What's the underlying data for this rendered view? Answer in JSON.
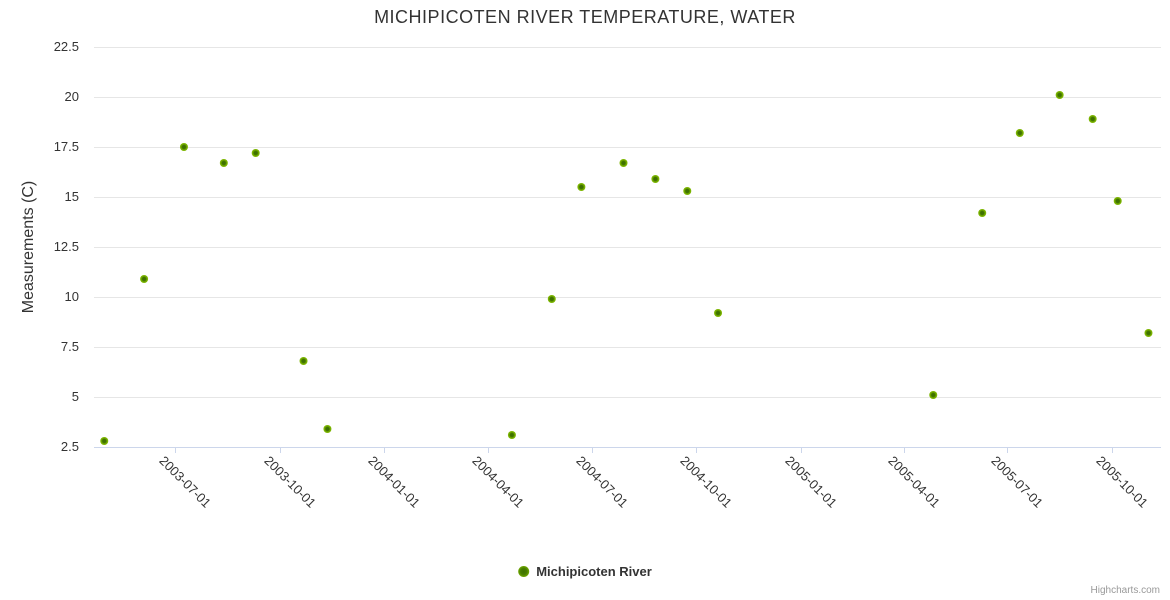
{
  "chart_data": {
    "type": "scatter",
    "title": "MICHIPICOTEN RIVER TEMPERATURE, WATER",
    "xlabel": "",
    "ylabel": "Measurements (C)",
    "grid": true,
    "legend_position": "bottom-center",
    "ylim": [
      2.5,
      22.5
    ],
    "y_ticks": [
      2.5,
      5,
      7.5,
      10,
      12.5,
      15,
      17.5,
      20,
      22.5
    ],
    "xlim": [
      "2003-04-21",
      "2005-11-13"
    ],
    "x_ticks": [
      "2003-07-01",
      "2003-10-01",
      "2004-01-01",
      "2004-04-01",
      "2004-07-01",
      "2004-10-01",
      "2005-01-01",
      "2005-04-01",
      "2005-07-01",
      "2005-10-01"
    ],
    "series": [
      {
        "name": "Michipicoten River",
        "marker_fill": "#7cb500",
        "marker_center": "#3e7100",
        "points": [
          {
            "date": "2003-04-30",
            "value": 2.8
          },
          {
            "date": "2003-06-04",
            "value": 10.9
          },
          {
            "date": "2003-07-09",
            "value": 17.5
          },
          {
            "date": "2003-08-13",
            "value": 16.7
          },
          {
            "date": "2003-09-10",
            "value": 17.2
          },
          {
            "date": "2003-10-22",
            "value": 6.8
          },
          {
            "date": "2003-11-12",
            "value": 3.4
          },
          {
            "date": "2004-04-22",
            "value": 3.1
          },
          {
            "date": "2004-05-27",
            "value": 9.9
          },
          {
            "date": "2004-06-22",
            "value": 15.5
          },
          {
            "date": "2004-07-29",
            "value": 16.7
          },
          {
            "date": "2004-08-26",
            "value": 15.9
          },
          {
            "date": "2004-09-23",
            "value": 15.3
          },
          {
            "date": "2004-10-20",
            "value": 9.2
          },
          {
            "date": "2005-04-27",
            "value": 5.1
          },
          {
            "date": "2005-06-09",
            "value": 14.2
          },
          {
            "date": "2005-07-12",
            "value": 18.2
          },
          {
            "date": "2005-08-16",
            "value": 20.1
          },
          {
            "date": "2005-09-14",
            "value": 18.9
          },
          {
            "date": "2005-10-06",
            "value": 14.8
          },
          {
            "date": "2005-11-02",
            "value": 8.2
          }
        ]
      }
    ]
  },
  "legend": {
    "label": "Michipicoten River"
  },
  "credits": {
    "text": "Highcharts.com"
  },
  "colors": {
    "title_text": "#333333",
    "axis_label": "#333333",
    "grid_line": "#e6e6e6",
    "axis_line": "#ccd6eb",
    "credits_text": "#999999",
    "background": "#ffffff"
  }
}
